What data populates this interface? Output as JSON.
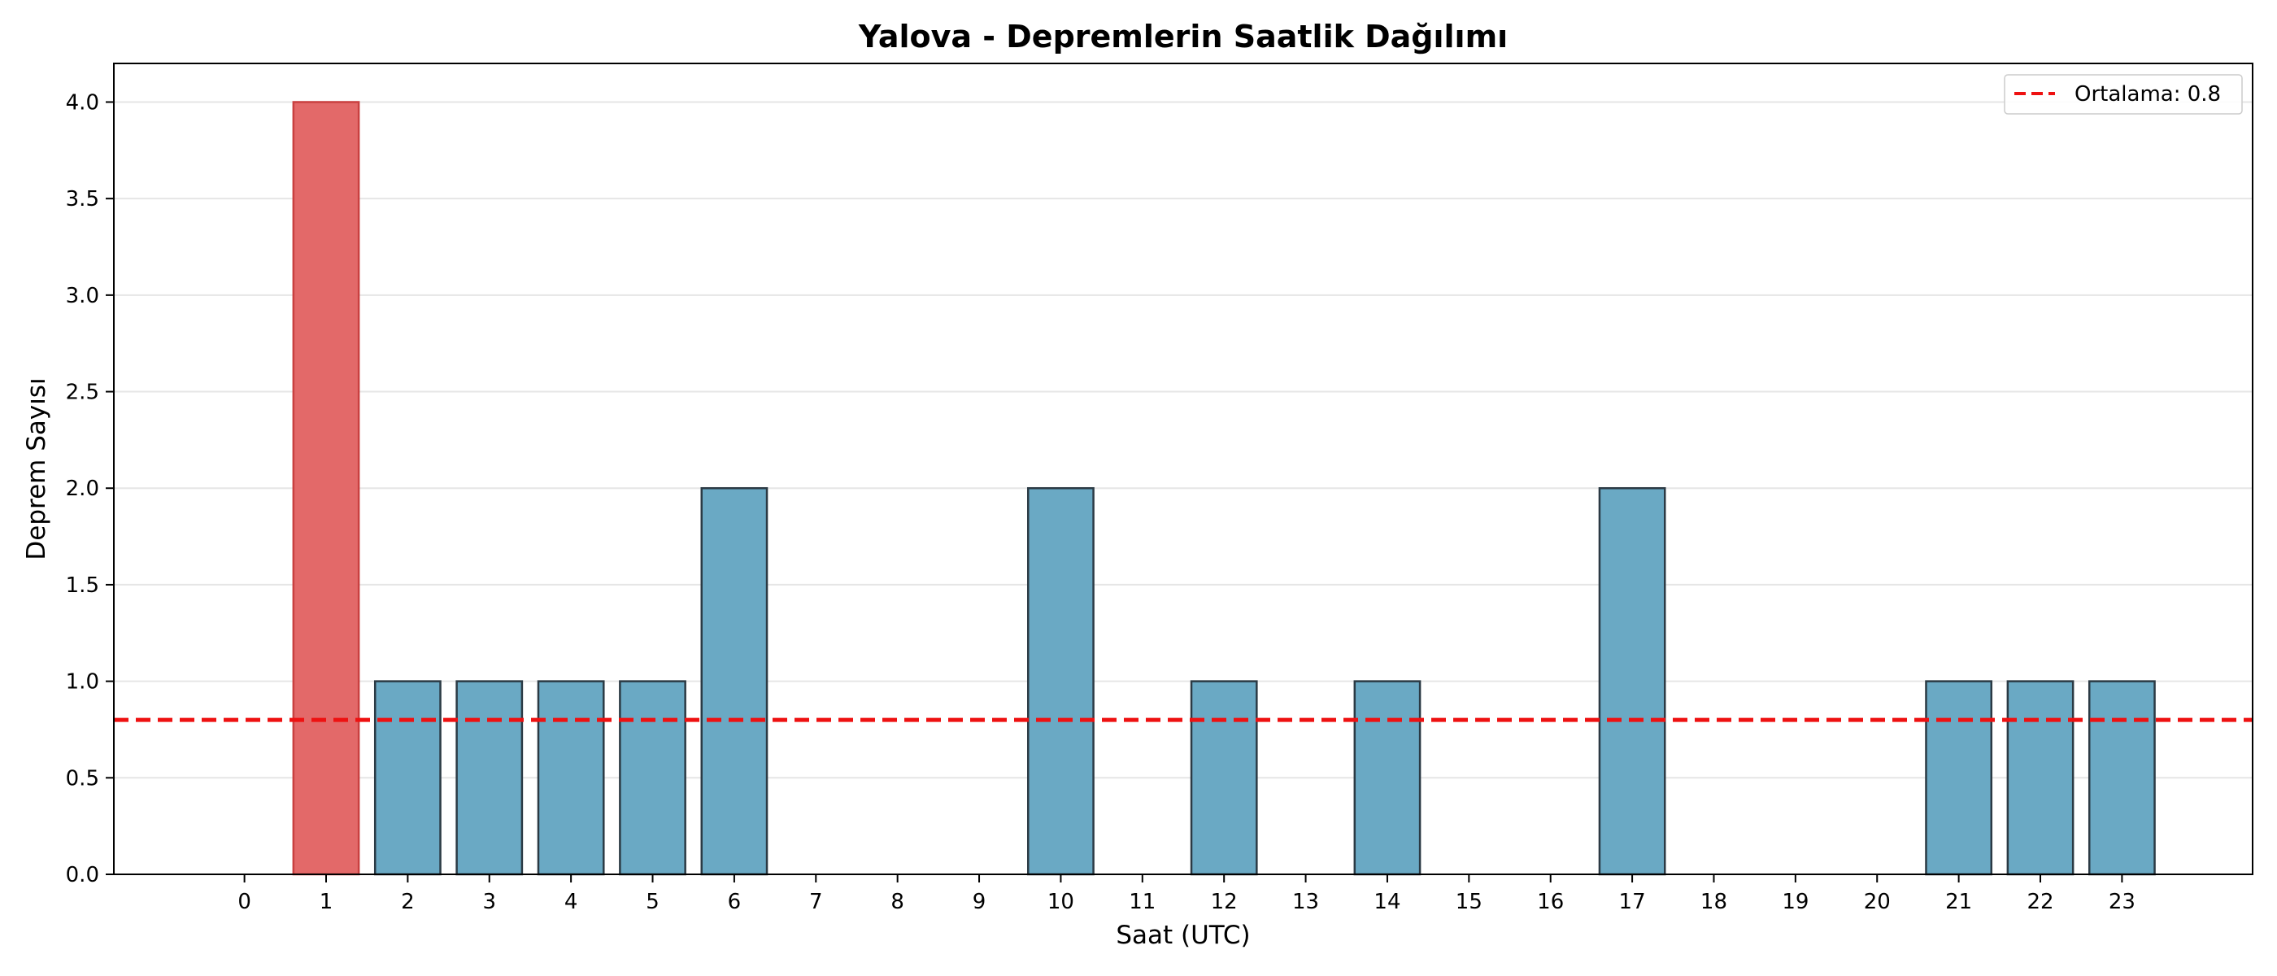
{
  "chart_data": {
    "type": "bar",
    "title": "Yalova - Depremlerin Saatlik Dağılımı",
    "xlabel": "Saat (UTC)",
    "ylabel": "Deprem Sayısı",
    "categories": [
      "0",
      "1",
      "2",
      "3",
      "4",
      "5",
      "6",
      "7",
      "8",
      "9",
      "10",
      "11",
      "12",
      "13",
      "14",
      "15",
      "16",
      "17",
      "18",
      "19",
      "20",
      "21",
      "22",
      "23"
    ],
    "values": [
      0,
      4,
      1,
      1,
      1,
      1,
      2,
      0,
      0,
      0,
      2,
      0,
      1,
      0,
      1,
      0,
      0,
      2,
      0,
      0,
      0,
      1,
      1,
      1
    ],
    "highlight_index": 1,
    "ylim": [
      0,
      4.2
    ],
    "yticks": [
      "0.0",
      "0.5",
      "1.0",
      "1.5",
      "2.0",
      "2.5",
      "3.0",
      "3.5",
      "4.0"
    ],
    "mean_line": {
      "value": 0.8,
      "label": "Ortalama: 0.8"
    },
    "legend_position": "top-right",
    "grid": "y",
    "colors": {
      "bar": "#6aa9c4",
      "highlight_bar": "#e36969",
      "bar_edge": "#2b3a44",
      "highlight_edge": "#c94040",
      "mean_line": "#ee1111",
      "grid": "#e6e6e6"
    }
  }
}
